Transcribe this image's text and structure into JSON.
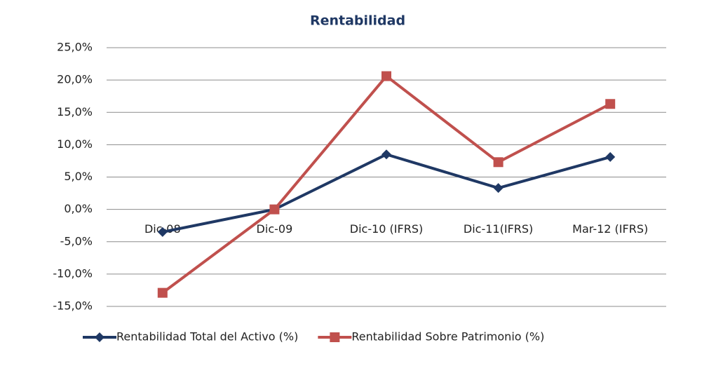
{
  "chart_data": {
    "type": "line",
    "title": "Rentabilidad",
    "categories": [
      "Dic-08",
      "Dic-09",
      "Dic-10 (IFRS)",
      "Dic-11(IFRS)",
      "Mar-12 (IFRS)"
    ],
    "series": [
      {
        "name": "Rentabilidad Total del Activo (%)",
        "color": "#1f3864",
        "marker": "diamond",
        "values": [
          -3.5,
          0,
          8.5,
          3.3,
          8.1
        ]
      },
      {
        "name": "Rentabilidad Sobre Patrimonio (%)",
        "color": "#c0504d",
        "marker": "square",
        "values": [
          -12.9,
          0,
          20.6,
          7.3,
          16.3
        ]
      }
    ],
    "ylim": [
      -15,
      25
    ],
    "yticks": [
      {
        "value": -15,
        "label": "-15,0%"
      },
      {
        "value": -10,
        "label": "-10,0%"
      },
      {
        "value": -5,
        "label": "-5,0%"
      },
      {
        "value": 0,
        "label": "0,0%"
      },
      {
        "value": 5,
        "label": "5,0%"
      },
      {
        "value": 10,
        "label": "10,0%"
      },
      {
        "value": 15,
        "label": "15,0%"
      },
      {
        "value": 20,
        "label": "20,0%"
      },
      {
        "value": 25,
        "label": "25,0%"
      }
    ],
    "grid": true,
    "legend": "bottom"
  }
}
